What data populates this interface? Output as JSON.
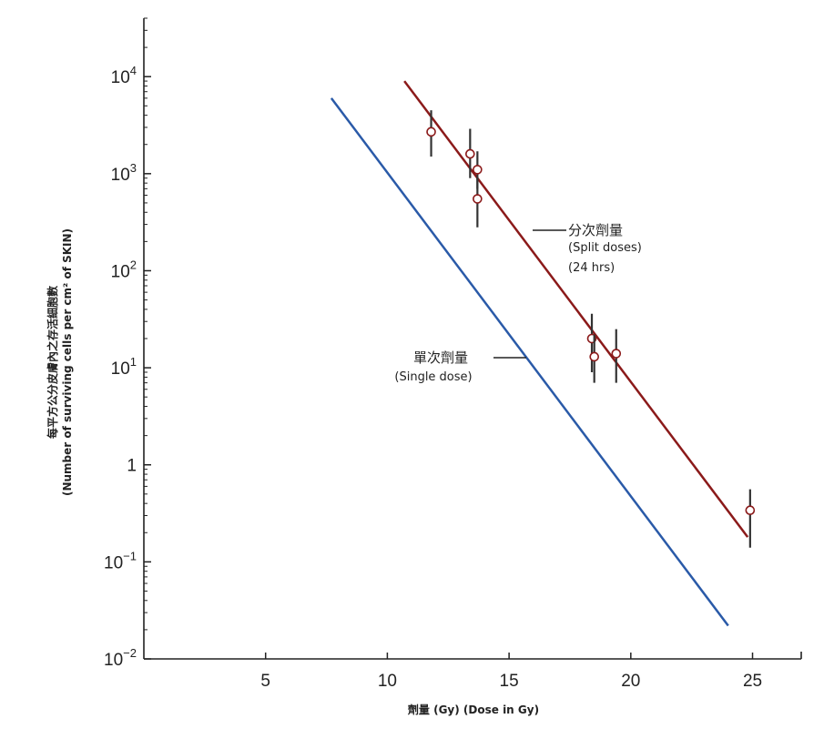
{
  "chart_data": {
    "type": "line",
    "xlabel": "劑量 (Gy) (Dose in Gy)",
    "ylabel_cn": "每平方公分皮膚內之存活細胞數",
    "ylabel_en": "(Number of surviving cells per cm² of SKIN)",
    "xlim": [
      0,
      27
    ],
    "ylim": [
      0.01,
      40000
    ],
    "yscale": "log",
    "grid": false,
    "x_ticks": [
      {
        "value": 5,
        "label": "5"
      },
      {
        "value": 10,
        "label": "10"
      },
      {
        "value": 15,
        "label": "15"
      },
      {
        "value": 20,
        "label": "20"
      },
      {
        "value": 25,
        "label": "25"
      }
    ],
    "y_ticks": [
      {
        "value": 10000,
        "base": "10",
        "exp": "4"
      },
      {
        "value": 1000,
        "base": "10",
        "exp": "3"
      },
      {
        "value": 100,
        "base": "10",
        "exp": "2"
      },
      {
        "value": 10,
        "base": "10",
        "exp": "1"
      },
      {
        "value": 1,
        "base": "1",
        "exp": ""
      },
      {
        "value": 0.1,
        "base": "10",
        "exp": "−1"
      },
      {
        "value": 0.01,
        "base": "10",
        "exp": "−2"
      }
    ],
    "series": [
      {
        "label_cn": "分次劑量",
        "label_en_1": "(Split doses)",
        "label_en_2": "(24 hrs)",
        "color": "#8b1a1a",
        "line": [
          [
            10.7,
            9000
          ],
          [
            24.8,
            0.18
          ]
        ],
        "points": [
          {
            "x": 11.8,
            "y": 2700,
            "lo": 1500,
            "hi": 4500
          },
          {
            "x": 13.4,
            "y": 1600,
            "lo": 900,
            "hi": 2900
          },
          {
            "x": 13.7,
            "y": 1100,
            "lo": 700,
            "hi": 1700
          },
          {
            "x": 13.7,
            "y": 550,
            "lo": 280,
            "hi": 900
          },
          {
            "x": 18.4,
            "y": 20,
            "lo": 9,
            "hi": 36
          },
          {
            "x": 18.5,
            "y": 13,
            "lo": 7,
            "hi": 22
          },
          {
            "x": 19.4,
            "y": 14,
            "lo": 7,
            "hi": 25
          },
          {
            "x": 24.9,
            "y": 0.34,
            "lo": 0.14,
            "hi": 0.56
          }
        ]
      },
      {
        "label_cn": "單次劑量",
        "label_en_1": "(Single dose)",
        "color": "#2a5aa8",
        "line": [
          [
            7.7,
            6000
          ],
          [
            24.0,
            0.022
          ]
        ]
      }
    ]
  }
}
